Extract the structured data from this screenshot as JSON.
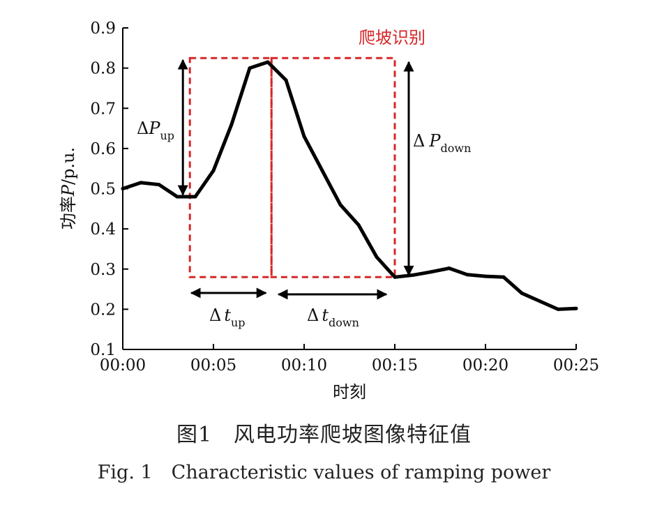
{
  "chart_data": {
    "type": "line",
    "xlabel": "时刻",
    "ylabel_main": "功率",
    "ylabel_var": "P",
    "ylabel_unit": "/p.u.",
    "xlim": [
      0,
      25
    ],
    "ylim": [
      0.1,
      0.9
    ],
    "x_tick_values": [
      0,
      5,
      10,
      15,
      20,
      25
    ],
    "x_tick_labels": [
      "00:00",
      "00:05",
      "00:10",
      "00:15",
      "00:20",
      "00:25"
    ],
    "y_tick_values": [
      0.1,
      0.2,
      0.3,
      0.4,
      0.5,
      0.6,
      0.7,
      0.8,
      0.9
    ],
    "y_tick_labels": [
      "0.1",
      "0.2",
      "0.3",
      "0.4",
      "0.5",
      "0.6",
      "0.7",
      "0.8",
      "0.9"
    ],
    "series": [
      {
        "x": [
          0,
          1,
          2,
          3,
          4,
          5,
          6,
          7,
          8,
          9,
          10,
          11,
          12,
          13,
          14,
          15,
          16,
          17,
          18,
          19,
          20,
          21,
          22,
          23,
          24,
          25
        ],
        "values": [
          0.5,
          0.515,
          0.51,
          0.48,
          0.48,
          0.545,
          0.66,
          0.8,
          0.815,
          0.77,
          0.63,
          0.545,
          0.46,
          0.41,
          0.33,
          0.28,
          0.285,
          0.293,
          0.302,
          0.286,
          0.282,
          0.28,
          0.24,
          0.22,
          0.2,
          0.202
        ]
      }
    ],
    "ramp_box": {
      "label": "爬坡识别",
      "x_start": 3.7,
      "x_peak": 8.2,
      "x_end": 15.0,
      "y_low": 0.28,
      "y_high": 0.825,
      "color": "#d62728"
    },
    "annotations": {
      "delta": "Δ",
      "dp_up_var": "P",
      "dp_up_sub": "up",
      "dp_down_var": "P",
      "dp_down_sub": "down",
      "dt_up_var": "t",
      "dt_up_sub": "up",
      "dt_down_var": "t",
      "dt_down_sub": "down"
    }
  },
  "caption": {
    "cn": "图1　风电功率爬坡图像特征值",
    "en": "Fig. 1 Characteristic values of ramping power"
  }
}
